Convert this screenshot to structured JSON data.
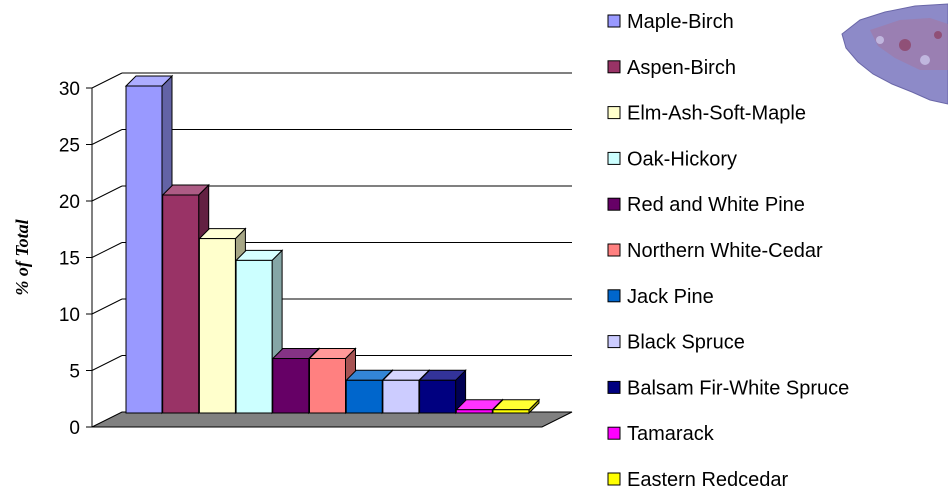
{
  "chart_data": {
    "type": "bar",
    "title": "",
    "xlabel": "",
    "ylabel": "% of Total",
    "ylim": [
      0,
      30
    ],
    "yticks": [
      "0",
      "5",
      "10",
      "15",
      "20",
      "25",
      "30"
    ],
    "grid": true,
    "legend_position": "right",
    "categories": [
      "Maple-Birch",
      "Aspen-Birch",
      "Elm-Ash-Soft-Maple",
      "Oak-Hickory",
      "Red and White Pine",
      "Northern White-Cedar",
      "Jack Pine",
      "Black Spruce",
      "Balsam Fir-White Spruce",
      "Tamarack",
      "Eastern Redcedar"
    ],
    "values": [
      30,
      20,
      16,
      14,
      5,
      5,
      3,
      3,
      3,
      0.3,
      0.3
    ],
    "colors": [
      "#9999ff",
      "#993366",
      "#ffffcc",
      "#ccffff",
      "#660066",
      "#ff8080",
      "#0066cc",
      "#ccccff",
      "#000080",
      "#ff00ff",
      "#ffff00"
    ]
  },
  "decorations": {
    "floor_color": "#808080",
    "map_icon": "forest-map-image"
  }
}
